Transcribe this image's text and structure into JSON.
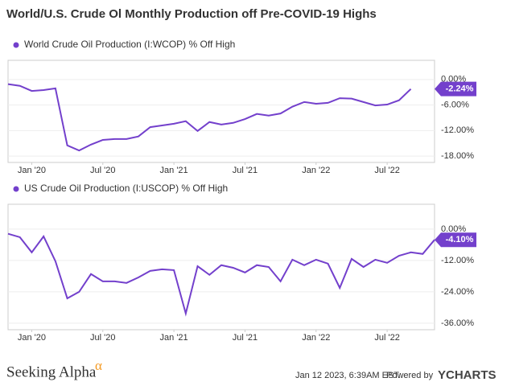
{
  "title": "World/U.S. Crude Ol Monthly Production off Pre-COVID-19 Highs",
  "chart_data": [
    {
      "type": "line",
      "title": "World Crude Oil Production (I:WCOP) % Off High",
      "x": [
        "2019-11",
        "2019-12",
        "2020-01",
        "2020-02",
        "2020-03",
        "2020-04",
        "2020-05",
        "2020-06",
        "2020-07",
        "2020-08",
        "2020-09",
        "2020-10",
        "2020-11",
        "2020-12",
        "2021-01",
        "2021-02",
        "2021-03",
        "2021-04",
        "2021-05",
        "2021-06",
        "2021-07",
        "2021-08",
        "2021-09",
        "2021-10",
        "2021-11",
        "2021-12",
        "2022-01",
        "2022-02",
        "2022-03",
        "2022-04",
        "2022-05",
        "2022-06",
        "2022-07",
        "2022-08",
        "2022-09"
      ],
      "series": [
        {
          "name": "World Crude Oil Production (I:WCOP) % Off High",
          "color": "#7340cc",
          "values": [
            -1.1,
            -1.5,
            -2.7,
            -2.5,
            -2.1,
            -15.5,
            -16.7,
            -15.3,
            -14.2,
            -14.0,
            -14.0,
            -13.4,
            -11.2,
            -10.8,
            -10.4,
            -9.8,
            -12.1,
            -10.0,
            -10.6,
            -10.2,
            -9.3,
            -8.1,
            -8.5,
            -8.0,
            -6.4,
            -5.3,
            -5.7,
            -5.5,
            -4.4,
            -4.5,
            -5.3,
            -6.1,
            -5.9,
            -4.9,
            -2.24
          ],
          "value_labels": [
            null,
            null,
            null,
            null,
            null,
            null,
            null,
            null,
            null,
            null,
            null,
            null,
            null,
            null,
            null,
            null,
            null,
            null,
            null,
            null,
            null,
            null,
            null,
            null,
            null,
            null,
            null,
            null,
            null,
            null,
            null,
            null,
            null,
            null,
            "-2.24%"
          ]
        }
      ],
      "xlim": [
        "2019-11",
        "2022-11"
      ],
      "xticks": [
        {
          "value": "2020-01",
          "label": "Jan '20"
        },
        {
          "value": "2020-07",
          "label": "Jul '20"
        },
        {
          "value": "2021-01",
          "label": "Jan '21"
        },
        {
          "value": "2021-07",
          "label": "Jul '21"
        },
        {
          "value": "2022-01",
          "label": "Jan '22"
        },
        {
          "value": "2022-07",
          "label": "Jul '22"
        }
      ],
      "ylim": [
        -19.5,
        4.5
      ],
      "yticks": [
        {
          "value": 0,
          "label": "0.00%"
        },
        {
          "value": -6,
          "label": "-6.00%"
        },
        {
          "value": -12,
          "label": "-12.00%"
        },
        {
          "value": -18,
          "label": "-18.00%"
        }
      ],
      "grid": true
    },
    {
      "type": "line",
      "title": "US Crude Oil Production (I:USCOP) % Off High",
      "x": [
        "2019-11",
        "2019-12",
        "2020-01",
        "2020-02",
        "2020-03",
        "2020-04",
        "2020-05",
        "2020-06",
        "2020-07",
        "2020-08",
        "2020-09",
        "2020-10",
        "2020-11",
        "2020-12",
        "2021-01",
        "2021-02",
        "2021-03",
        "2021-04",
        "2021-05",
        "2021-06",
        "2021-07",
        "2021-08",
        "2021-09",
        "2021-10",
        "2021-11",
        "2021-12",
        "2022-01",
        "2022-02",
        "2022-03",
        "2022-04",
        "2022-05",
        "2022-06",
        "2022-07",
        "2022-08",
        "2022-09",
        "2022-10",
        "2022-11"
      ],
      "series": [
        {
          "name": "US Crude Oil Production (I:USCOP) % Off High",
          "color": "#7340cc",
          "values": [
            -1.8,
            -3.1,
            -8.9,
            -2.8,
            -12.3,
            -26.5,
            -24.0,
            -17.2,
            -20.0,
            -20.0,
            -20.6,
            -18.5,
            -16.0,
            -15.4,
            -15.7,
            -32.3,
            -14.2,
            -17.5,
            -13.8,
            -14.8,
            -16.6,
            -13.8,
            -14.5,
            -20.0,
            -11.7,
            -13.8,
            -11.7,
            -13.2,
            -22.5,
            -11.4,
            -14.5,
            -11.7,
            -12.9,
            -10.2,
            -8.9,
            -9.5,
            -4.1
          ],
          "value_labels": [
            null,
            null,
            null,
            null,
            null,
            null,
            null,
            null,
            null,
            null,
            null,
            null,
            null,
            null,
            null,
            null,
            null,
            null,
            null,
            null,
            null,
            null,
            null,
            null,
            null,
            null,
            null,
            null,
            null,
            null,
            null,
            null,
            null,
            null,
            null,
            null,
            "-4.10%"
          ]
        }
      ],
      "xlim": [
        "2019-11",
        "2022-11"
      ],
      "xticks": [
        {
          "value": "2020-01",
          "label": "Jan '20"
        },
        {
          "value": "2020-07",
          "label": "Jul '20"
        },
        {
          "value": "2021-01",
          "label": "Jan '21"
        },
        {
          "value": "2021-07",
          "label": "Jul '21"
        },
        {
          "value": "2022-01",
          "label": "Jan '22"
        },
        {
          "value": "2022-07",
          "label": "Jul '22"
        }
      ],
      "ylim": [
        -38.5,
        9.5
      ],
      "yticks": [
        {
          "value": 0,
          "label": "0.00%"
        },
        {
          "value": -12,
          "label": "-12.00%"
        },
        {
          "value": -24,
          "label": "-24.00%"
        },
        {
          "value": -36,
          "label": "-36.00%"
        }
      ],
      "grid": true
    }
  ],
  "footer": {
    "logo": "Seeking Alpha",
    "logo_mark": "α",
    "timestamp": "Jan 12 2023, 6:39AM EST.",
    "powered": "Powered by",
    "brand": "YCHARTS"
  }
}
